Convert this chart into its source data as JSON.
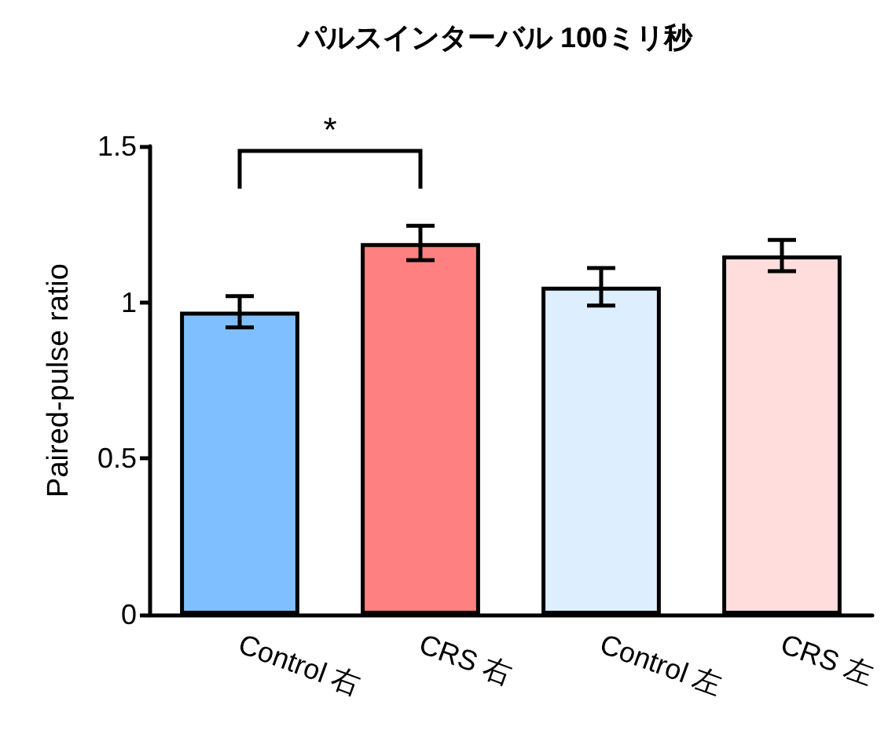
{
  "chart_data": {
    "type": "bar",
    "title": "パルスインターバル 100ミリ秒",
    "ylabel": "Paired-pulse ratio",
    "categories": [
      "Control 右",
      "CRS 右",
      "Control 左",
      "CRS 左"
    ],
    "values": [
      0.97,
      1.19,
      1.05,
      1.15
    ],
    "errors": [
      0.05,
      0.055,
      0.06,
      0.05
    ],
    "colors": [
      "#80bfff",
      "#ff8080",
      "#ddeeff",
      "#ffdddd"
    ],
    "ylim": [
      0,
      1.5
    ],
    "yticks": [
      0,
      0.5,
      1,
      1.5
    ],
    "grid": false,
    "annotations": [
      "*"
    ]
  }
}
